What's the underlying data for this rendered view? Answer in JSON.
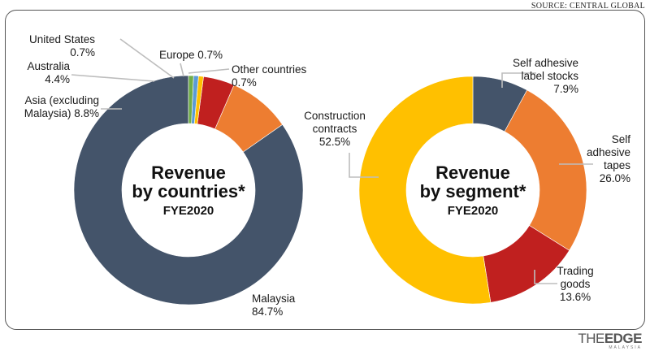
{
  "source": "SOURCE: CENTRAL GLOBAL",
  "logo": {
    "the": "THE",
    "edge": "EDGE",
    "sub": "MALAYSIA"
  },
  "chart_data": [
    {
      "type": "pie",
      "donut": true,
      "title": [
        "Revenue",
        "by countries*"
      ],
      "subtitle": "FYE2020",
      "slices": [
        {
          "name": "Malaysia",
          "value": 84.7,
          "color": "#44546a",
          "label": [
            "Malaysia",
            "84.7%"
          ]
        },
        {
          "name": "Asia (excluding Malaysia)",
          "value": 8.8,
          "color": "#ed7d31",
          "label": [
            "Asia (excluding",
            "Malaysia) 8.8%"
          ]
        },
        {
          "name": "Australia",
          "value": 4.4,
          "color": "#c0201f",
          "label": [
            "Australia",
            "4.4%"
          ]
        },
        {
          "name": "United States",
          "value": 0.7,
          "color": "#ffc000",
          "label": [
            "United States",
            "0.7%"
          ]
        },
        {
          "name": "Europe",
          "value": 0.7,
          "color": "#5b9bd5",
          "label": [
            "Europe 0.7%"
          ]
        },
        {
          "name": "Other countries",
          "value": 0.7,
          "color": "#70ad47",
          "label": [
            "Other countries",
            "0.7%"
          ]
        }
      ]
    },
    {
      "type": "pie",
      "donut": true,
      "title": [
        "Revenue",
        "by segment*"
      ],
      "subtitle": "FYE2020",
      "slices": [
        {
          "name": "Self adhesive label stocks",
          "value": 7.9,
          "color": "#44546a",
          "label": [
            "Self adhesive",
            "label stocks",
            "7.9%"
          ]
        },
        {
          "name": "Self adhesive tapes",
          "value": 26.0,
          "color": "#ed7d31",
          "label": [
            "Self",
            "adhesive",
            "tapes",
            "26.0%"
          ]
        },
        {
          "name": "Trading goods",
          "value": 13.6,
          "color": "#c0201f",
          "label": [
            "Trading",
            "goods",
            "13.6%"
          ]
        },
        {
          "name": "Construction contracts",
          "value": 52.5,
          "color": "#ffc000",
          "label": [
            "Construction",
            "contracts",
            "52.5%"
          ]
        }
      ]
    }
  ]
}
